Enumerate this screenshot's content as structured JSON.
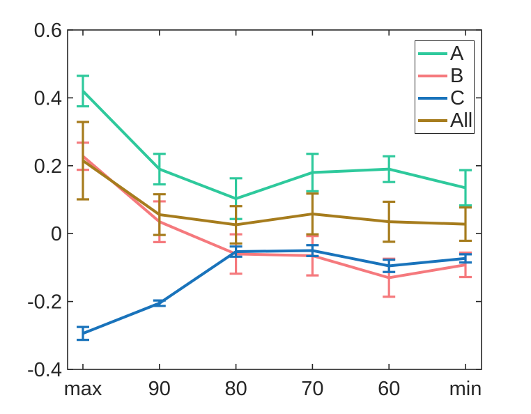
{
  "figure": {
    "background_color": "#ffffff",
    "axes_color": "#262626"
  },
  "chart_data": {
    "type": "line",
    "subtype": "errorbar",
    "title": "",
    "xlabel": "",
    "ylabel": "",
    "categories": [
      "max",
      "90",
      "80",
      "70",
      "60",
      "min"
    ],
    "ylim": [
      -0.4,
      0.6
    ],
    "yticks": [
      0.6,
      0.4,
      0.2,
      0,
      -0.2,
      -0.4
    ],
    "ytick_labels": [
      "0.6",
      "0.4",
      "0.2",
      "0",
      "-0.2",
      "-0.4"
    ],
    "grid": false,
    "box": true,
    "tick_direction": "in",
    "legend_position": "top-right",
    "series": [
      {
        "name": "A",
        "color": "#2EC99C",
        "values": [
          0.42,
          0.19,
          0.103,
          0.18,
          0.19,
          0.135
        ],
        "errors": [
          0.045,
          0.045,
          0.06,
          0.055,
          0.038,
          0.052
        ]
      },
      {
        "name": "B",
        "color": "#F5797D",
        "values": [
          0.228,
          0.035,
          -0.06,
          -0.065,
          -0.13,
          -0.092
        ],
        "errors": [
          0.04,
          0.06,
          0.058,
          0.058,
          0.056,
          0.036
        ]
      },
      {
        "name": "C",
        "color": "#1973BB",
        "values": [
          -0.294,
          -0.205,
          -0.053,
          -0.05,
          -0.095,
          -0.073
        ],
        "errors": [
          0.019,
          0.008,
          0.015,
          0.016,
          0.018,
          0.012
        ]
      },
      {
        "name": "All",
        "color": "#A67C1D",
        "values": [
          0.215,
          0.056,
          0.026,
          0.058,
          0.035,
          0.028
        ],
        "errors": [
          0.114,
          0.06,
          0.055,
          0.06,
          0.059,
          0.049
        ]
      }
    ]
  }
}
